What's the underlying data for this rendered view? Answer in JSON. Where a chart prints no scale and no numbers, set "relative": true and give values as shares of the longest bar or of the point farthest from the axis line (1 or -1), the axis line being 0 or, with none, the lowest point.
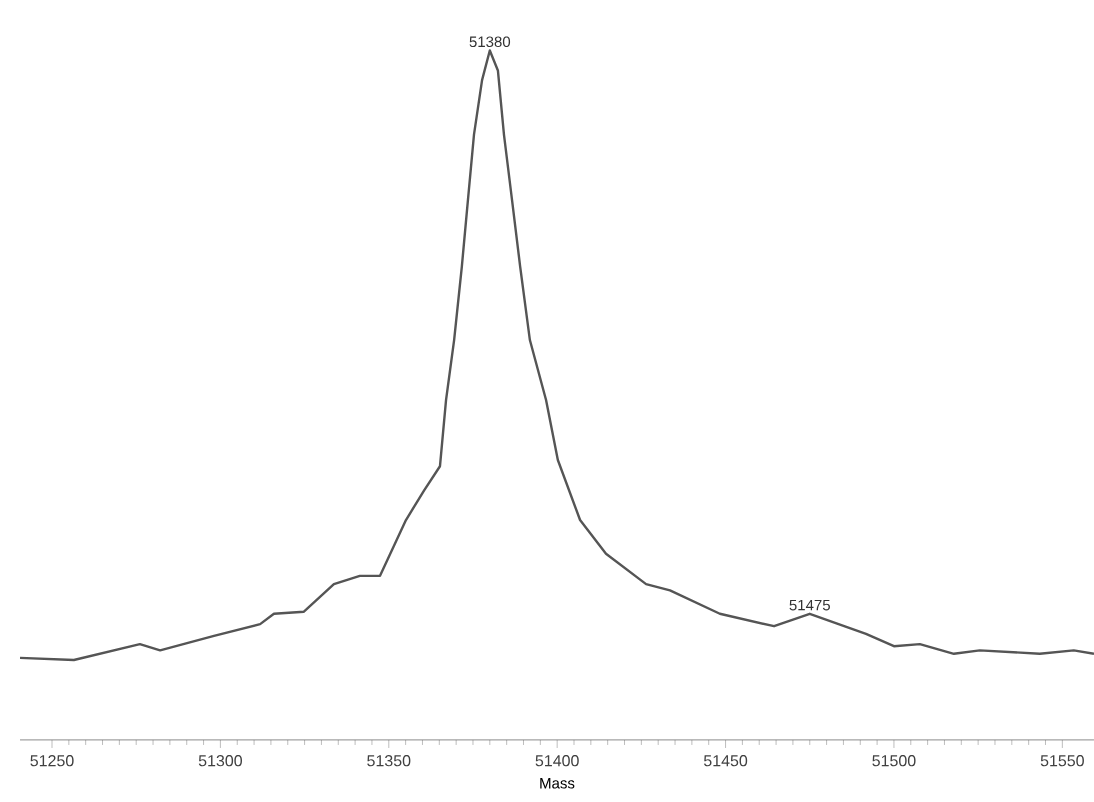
{
  "chart_data": {
    "type": "line",
    "xlabel": "Mass",
    "relative": true,
    "xlim": [
      51240.5,
      51559.4
    ],
    "xticks": [
      51250,
      51300,
      51350,
      51400,
      51450,
      51500,
      51550
    ],
    "x": [
      51240.5,
      51256.5,
      51276.1,
      51282.1,
      51298.1,
      51311.8,
      51315.9,
      51324.8,
      51333.7,
      51341.4,
      51347.4,
      51355.1,
      51360.5,
      51365.2,
      51367.0,
      51369.4,
      51371.7,
      51373.5,
      51375.3,
      51377.7,
      51380,
      51382.4,
      51384.2,
      51386.6,
      51389.0,
      51391.9,
      51396.7,
      51400.2,
      51406.8,
      51414.5,
      51426.4,
      51433.5,
      51448.3,
      51464.4,
      51475,
      51491.7,
      51500.0,
      51507.7,
      51517.8,
      51525.5,
      51543.3,
      51553.4,
      51559.4
    ],
    "series": [
      {
        "color": "#555555",
        "values": [
          0.119,
          0.116,
          0.139,
          0.13,
          0.151,
          0.168,
          0.183,
          0.186,
          0.226,
          0.238,
          0.238,
          0.319,
          0.362,
          0.397,
          0.493,
          0.58,
          0.687,
          0.783,
          0.878,
          0.957,
          1.0,
          0.971,
          0.878,
          0.783,
          0.687,
          0.58,
          0.493,
          0.406,
          0.319,
          0.27,
          0.226,
          0.217,
          0.183,
          0.165,
          0.183,
          0.154,
          0.136,
          0.139,
          0.125,
          0.13,
          0.125,
          0.13,
          0.125
        ]
      }
    ],
    "annotations": [
      {
        "text": "51380",
        "x": 51380,
        "y": 1.0
      },
      {
        "text": "51475",
        "x": 51475,
        "y": 0.183
      }
    ]
  }
}
